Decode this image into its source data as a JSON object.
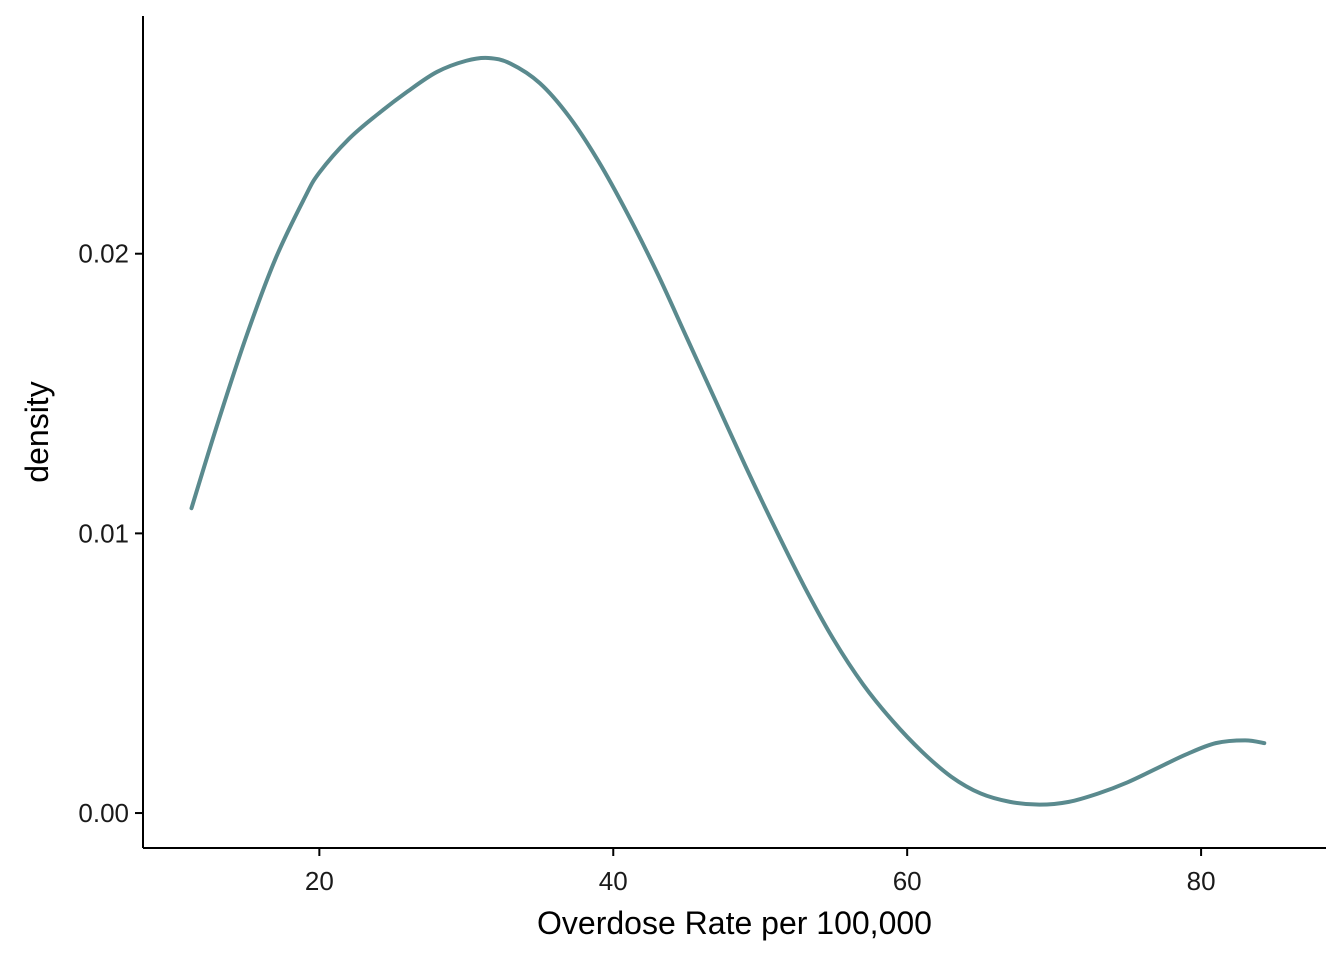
{
  "chart_data": {
    "type": "line",
    "title": "",
    "xlabel": "Overdose Rate per 100,000",
    "ylabel": "density",
    "xlim": [
      8.0,
      88.5
    ],
    "ylim": [
      -0.00125,
      0.0285
    ],
    "x_ticks": [
      20,
      40,
      60,
      80
    ],
    "y_ticks": [
      0.0,
      0.01,
      0.02
    ],
    "x_tick_labels": [
      "20",
      "40",
      "60",
      "80"
    ],
    "y_tick_labels": [
      "0.00",
      "0.01",
      "0.02"
    ],
    "grid": false,
    "legend": "none",
    "series": [
      {
        "color": "#5a8a8e",
        "x": [
          11.3,
          13,
          15,
          17,
          19,
          20,
          22,
          24,
          26,
          28,
          30,
          31.5,
          33,
          35,
          37,
          39,
          41,
          43,
          45,
          47,
          49,
          51,
          53,
          55,
          57,
          59,
          61,
          63,
          65,
          67,
          69,
          71,
          73,
          75,
          77,
          79,
          81,
          83,
          84.3
        ],
        "y": [
          0.0109,
          0.0138,
          0.017,
          0.0198,
          0.022,
          0.0229,
          0.0241,
          0.025,
          0.0258,
          0.0265,
          0.0269,
          0.027,
          0.0268,
          0.0261,
          0.0249,
          0.0233,
          0.0214,
          0.0193,
          0.017,
          0.0147,
          0.0124,
          0.0102,
          0.0081,
          0.0062,
          0.0046,
          0.0033,
          0.0022,
          0.0013,
          0.0007,
          0.0004,
          0.0003,
          0.0004,
          0.0007,
          0.0011,
          0.0016,
          0.0021,
          0.0025,
          0.0026,
          0.0025
        ]
      }
    ]
  }
}
